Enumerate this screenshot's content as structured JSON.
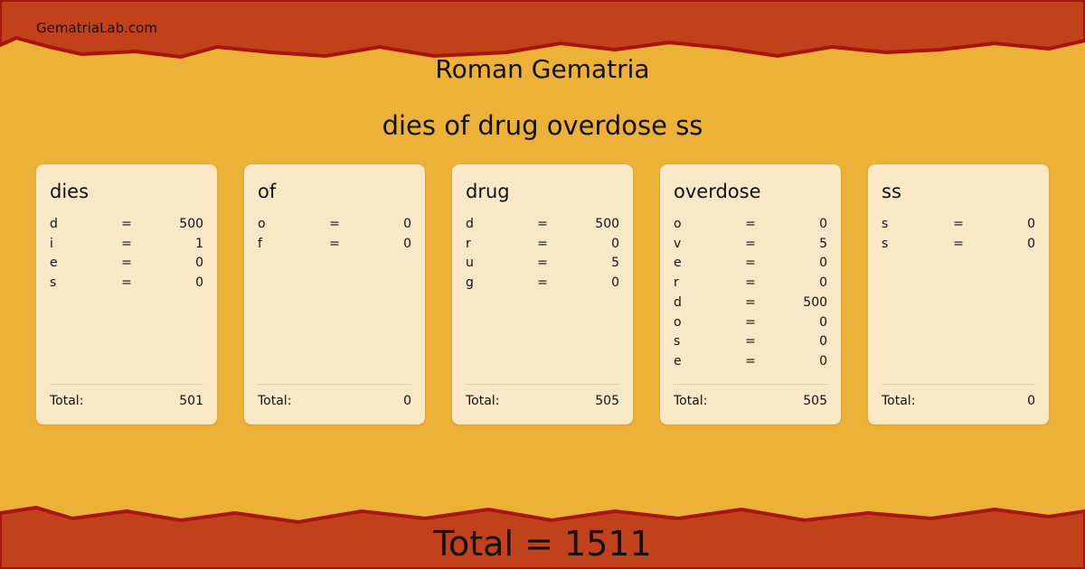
{
  "site": "GematriaLab.com",
  "title": "Roman Gematria",
  "phrase": "dies of drug overdose ss",
  "colors": {
    "background": "#ecb238",
    "band": "#c1411b",
    "band_edge": "#a8140e",
    "card": "#f8e8c8"
  },
  "total_label": "Total:",
  "words": [
    {
      "word": "dies",
      "letters": [
        [
          "d",
          "=",
          "500"
        ],
        [
          "i",
          "=",
          "1"
        ],
        [
          "e",
          "=",
          "0"
        ],
        [
          "s",
          "=",
          "0"
        ]
      ],
      "total": "501"
    },
    {
      "word": "of",
      "letters": [
        [
          "o",
          "=",
          "0"
        ],
        [
          "f",
          "=",
          "0"
        ]
      ],
      "total": "0"
    },
    {
      "word": "drug",
      "letters": [
        [
          "d",
          "=",
          "500"
        ],
        [
          "r",
          "=",
          "0"
        ],
        [
          "u",
          "=",
          "5"
        ],
        [
          "g",
          "=",
          "0"
        ]
      ],
      "total": "505"
    },
    {
      "word": "overdose",
      "letters": [
        [
          "o",
          "=",
          "0"
        ],
        [
          "v",
          "=",
          "5"
        ],
        [
          "e",
          "=",
          "0"
        ],
        [
          "r",
          "=",
          "0"
        ],
        [
          "d",
          "=",
          "500"
        ],
        [
          "o",
          "=",
          "0"
        ],
        [
          "s",
          "=",
          "0"
        ],
        [
          "e",
          "=",
          "0"
        ]
      ],
      "total": "505"
    },
    {
      "word": "ss",
      "letters": [
        [
          "s",
          "=",
          "0"
        ],
        [
          "s",
          "=",
          "0"
        ]
      ],
      "total": "0"
    }
  ],
  "grand_total": "Total = 1511"
}
